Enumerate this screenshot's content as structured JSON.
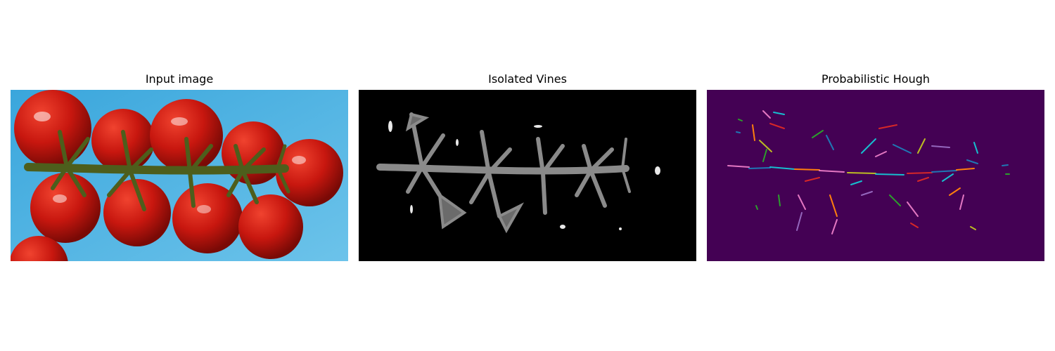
{
  "figure": {
    "panels": [
      {
        "title": "Input image",
        "content": "photo of tomatoes on the vine on a blue background"
      },
      {
        "title": "Isolated Vines",
        "content": "grayscale vine structure on black background"
      },
      {
        "title": "Probabilistic Hough",
        "content": "colored detected line segments on purple background"
      }
    ]
  },
  "colors": {
    "background_photo": "#4fb0df",
    "tomato": "#c8170f",
    "vine": "#4d5e1c",
    "hough_background": "#440154",
    "segment_palette": [
      "#1f77b4",
      "#ff7f0e",
      "#2ca02c",
      "#d62728",
      "#9467bd",
      "#8c564b",
      "#e377c2",
      "#7f7f7f",
      "#bcbd22",
      "#17becf"
    ]
  }
}
